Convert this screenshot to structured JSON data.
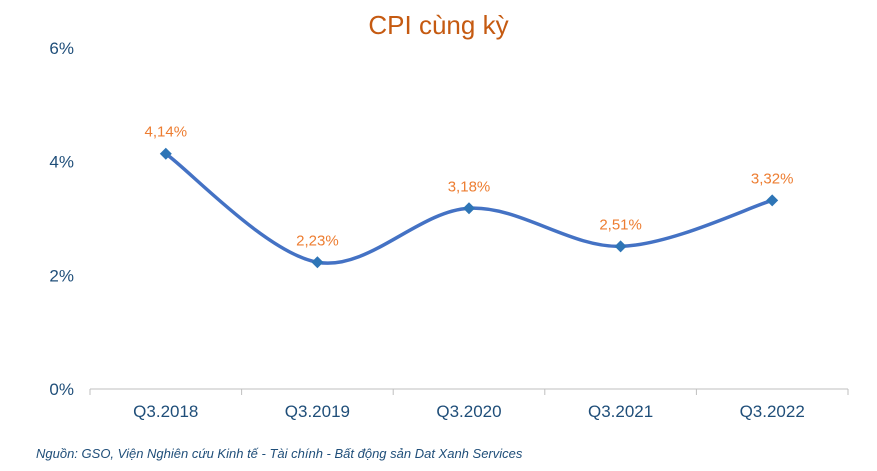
{
  "chart_data": {
    "type": "line",
    "title": "CPI cùng kỳ",
    "categories": [
      "Q3.2018",
      "Q3.2019",
      "Q3.2020",
      "Q3.2021",
      "Q3.2022"
    ],
    "series": [
      {
        "values": [
          4.14,
          2.23,
          3.18,
          2.51,
          3.32
        ]
      }
    ],
    "data_labels": [
      "4,14%",
      "2,23%",
      "3,18%",
      "2,51%",
      "3,32%"
    ],
    "y_ticks": [
      0,
      2,
      4,
      6
    ],
    "y_tick_labels": [
      "0%",
      "2%",
      "4%",
      "6%"
    ],
    "ylim": [
      0,
      6
    ],
    "grid": false,
    "smooth": true,
    "colors": {
      "line": "#4472c4",
      "marker": "#2e75b6",
      "labels": "#ed7d31",
      "title": "#c55a11",
      "axis_text": "#1f4e79"
    }
  },
  "source": "Nguồn: GSO, Viện Nghiên cứu Kinh tế - Tài chính - Bất động sản Dat Xanh Services"
}
